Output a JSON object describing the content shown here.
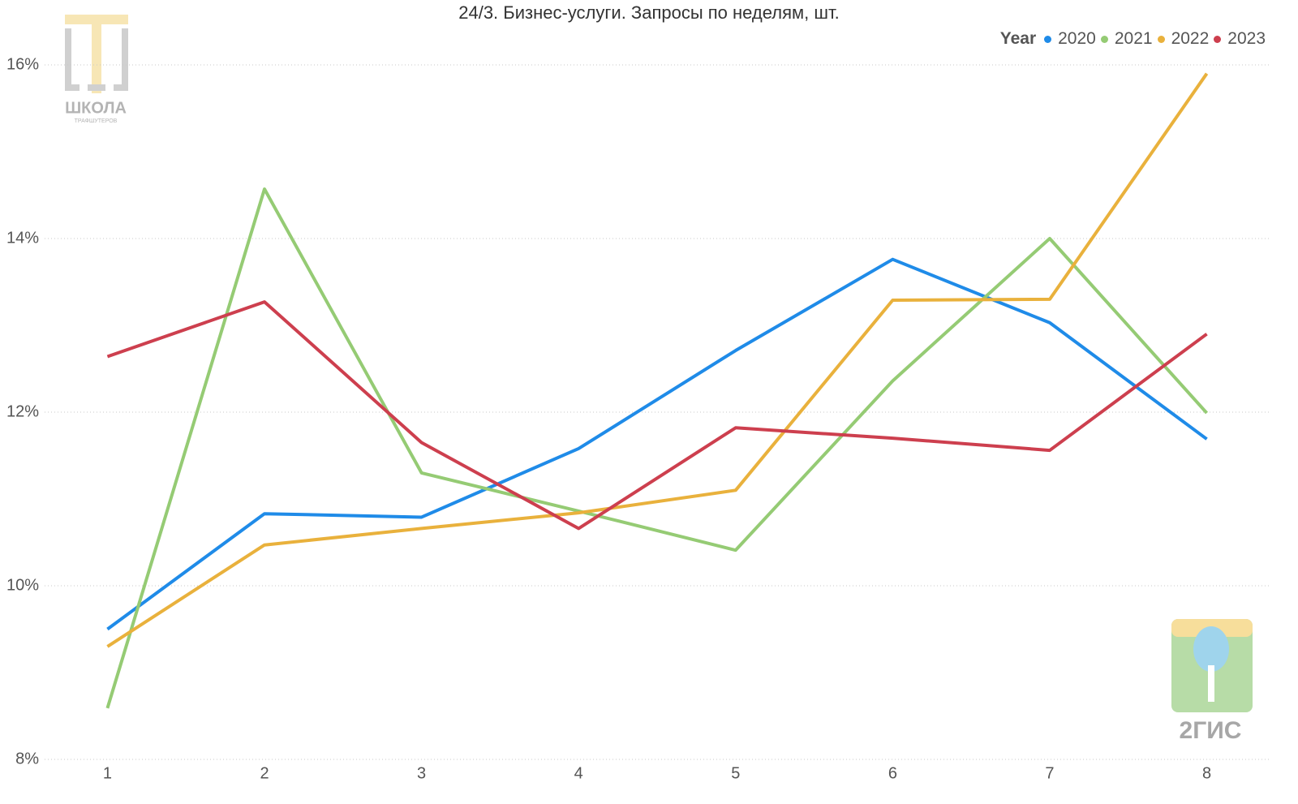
{
  "chart_data": {
    "type": "line",
    "title": "24/3. Бизнес-услуги. Запросы по неделям, шт.",
    "legend_title": "Year",
    "legend_position": "top-right",
    "grid": true,
    "x": [
      1,
      2,
      3,
      4,
      5,
      6,
      7,
      8
    ],
    "xlim": [
      0.6,
      8.4
    ],
    "xticks": [
      1,
      2,
      3,
      4,
      5,
      6,
      7,
      8
    ],
    "ylim": [
      8,
      16
    ],
    "yticks": [
      {
        "value": 8,
        "label": "8%"
      },
      {
        "value": 10,
        "label": "10%"
      },
      {
        "value": 12,
        "label": "12%"
      },
      {
        "value": 14,
        "label": "14%"
      },
      {
        "value": 16,
        "label": "16%"
      }
    ],
    "series": [
      {
        "name": "2020",
        "color": "#1f8be8",
        "values": [
          9.5,
          10.83,
          10.79,
          11.58,
          12.71,
          13.76,
          13.03,
          11.69
        ]
      },
      {
        "name": "2021",
        "color": "#95cb74",
        "values": [
          8.59,
          14.57,
          11.3,
          10.86,
          10.41,
          12.36,
          14.0,
          11.99
        ]
      },
      {
        "name": "2022",
        "color": "#e9b13c",
        "values": [
          9.3,
          10.47,
          10.66,
          10.84,
          11.1,
          13.29,
          13.3,
          15.9
        ]
      },
      {
        "name": "2023",
        "color": "#cd3f4e",
        "values": [
          12.64,
          13.27,
          11.65,
          10.66,
          11.82,
          11.7,
          11.56,
          12.9
        ]
      }
    ]
  },
  "logos": {
    "school": "ШКОЛА",
    "school_sub": "ТРАФШУТЕРОВ",
    "gis": "2ГИС"
  }
}
